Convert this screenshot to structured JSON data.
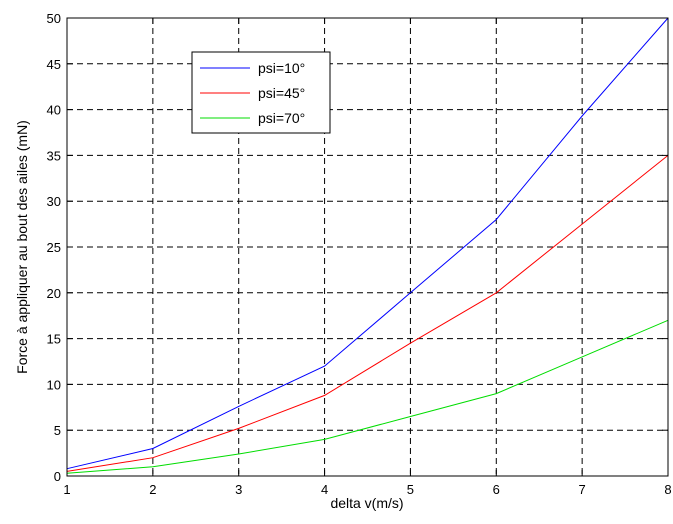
{
  "chart_data": {
    "type": "line",
    "xlabel": "delta v(m/s)",
    "ylabel": "Force à appliquer au bout des ailes (mN)",
    "xlim": [
      1,
      8
    ],
    "ylim": [
      0,
      50
    ],
    "xticks": [
      1,
      2,
      3,
      4,
      5,
      6,
      7,
      8
    ],
    "yticks": [
      0,
      5,
      10,
      15,
      20,
      25,
      30,
      35,
      40,
      45,
      50
    ],
    "grid": true,
    "legend_position": "top-left",
    "x": [
      1,
      2,
      3,
      4,
      5,
      6,
      7,
      8
    ],
    "series": [
      {
        "name": "psi=10°",
        "color": "#0000ff",
        "values": [
          0.8,
          3.0,
          7.6,
          12.0,
          20.0,
          28.0,
          39.3,
          50.0
        ]
      },
      {
        "name": "psi=45°",
        "color": "#ff0000",
        "values": [
          0.5,
          2.0,
          5.2,
          8.8,
          14.5,
          20.0,
          27.5,
          35.0
        ]
      },
      {
        "name": "psi=70°",
        "color": "#00dd00",
        "values": [
          0.3,
          1.0,
          2.4,
          4.0,
          6.5,
          9.0,
          13.0,
          17.0
        ]
      }
    ]
  }
}
